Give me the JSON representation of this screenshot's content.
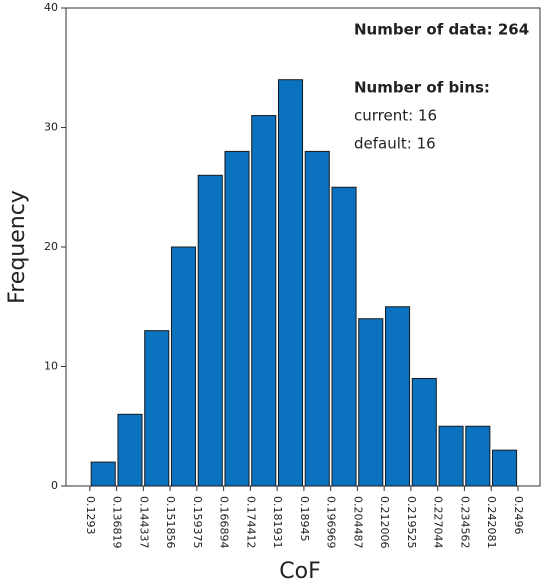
{
  "chart_data": {
    "type": "histogram",
    "x_label": "CoF",
    "y_label": "Frequency",
    "bins": [
      0.1293,
      0.136819,
      0.144337,
      0.151856,
      0.159375,
      0.166894,
      0.174412,
      0.181931,
      0.18945,
      0.196969,
      0.204487,
      0.212006,
      0.219525,
      0.227044,
      0.234562,
      0.242081,
      0.2496
    ],
    "values": [
      2,
      6,
      13,
      20,
      26,
      28,
      31,
      34,
      28,
      25,
      14,
      15,
      9,
      5,
      5,
      3
    ],
    "color": "#0b72c0",
    "xlim": [
      0.1226,
      0.2558
    ],
    "xticks": [
      0.1293,
      0.136819,
      0.144337,
      0.151856,
      0.159375,
      0.166894,
      0.174412,
      0.181931,
      0.18945,
      0.196969,
      0.204487,
      0.212006,
      0.219525,
      0.227044,
      0.234562,
      0.242081,
      0.2496
    ],
    "ylim": [
      0,
      40
    ],
    "yticks": [
      0,
      10,
      20,
      30,
      40
    ],
    "annotations": [
      "Number of data: 264",
      "Number of bins:",
      "current: 16",
      "default: 16"
    ]
  }
}
